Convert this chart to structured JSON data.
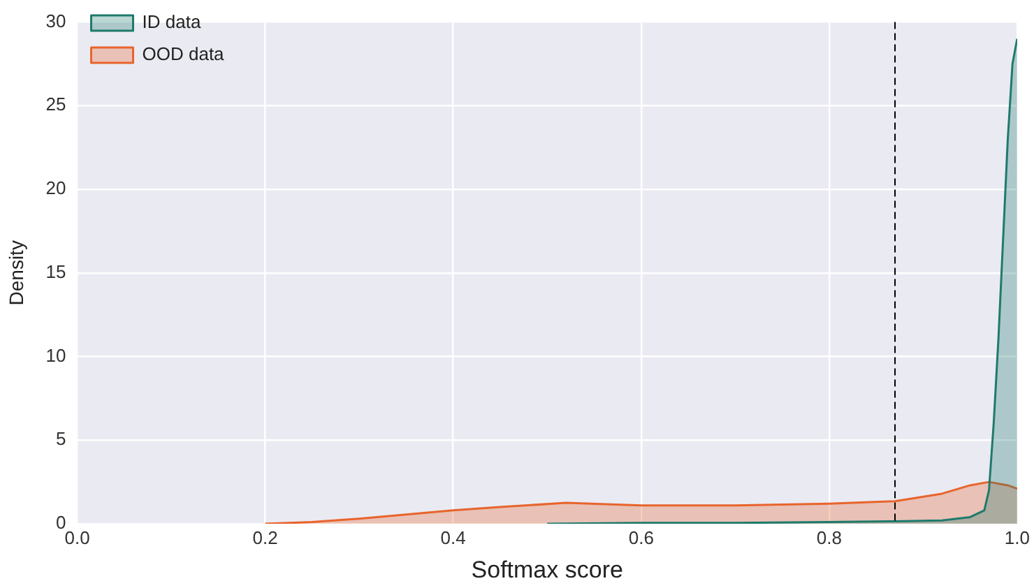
{
  "chart_data": {
    "type": "area",
    "xlabel": "Softmax score",
    "ylabel": "Density",
    "xlim": [
      0,
      1
    ],
    "xticks": [
      {
        "value": 0,
        "label": "0.0"
      },
      0.2,
      0.4,
      0.6,
      0.8,
      {
        "value": 1,
        "label": "1.0"
      }
    ],
    "ylim": [
      0,
      30
    ],
    "yticks": [
      0,
      5,
      10,
      15,
      20,
      25,
      30
    ],
    "grid": true,
    "legend": "top left",
    "series": [
      {
        "name": "ID data",
        "color": "#1f7a6c",
        "x": [
          0.5,
          0.6,
          0.7,
          0.8,
          0.87,
          0.92,
          0.95,
          0.965,
          0.97,
          0.975,
          0.98,
          0.985,
          0.99,
          0.995,
          1.0
        ],
        "values": [
          0,
          0.05,
          0.05,
          0.1,
          0.15,
          0.2,
          0.4,
          0.8,
          2,
          6,
          11,
          17,
          23,
          27.5,
          29
        ]
      },
      {
        "name": "OOD data",
        "color": "#e8642c",
        "x": [
          0.2,
          0.25,
          0.3,
          0.35,
          0.4,
          0.45,
          0.52,
          0.6,
          0.7,
          0.8,
          0.87,
          0.92,
          0.95,
          0.97,
          0.99,
          1.0
        ],
        "values": [
          0,
          0.1,
          0.3,
          0.55,
          0.8,
          1.0,
          1.25,
          1.1,
          1.1,
          1.2,
          1.35,
          1.8,
          2.3,
          2.5,
          2.3,
          2.1
        ]
      }
    ],
    "ref_lines": [
      {
        "axis": "x",
        "value": 0.87,
        "color": "#000000",
        "line_style": "dashed"
      }
    ]
  }
}
